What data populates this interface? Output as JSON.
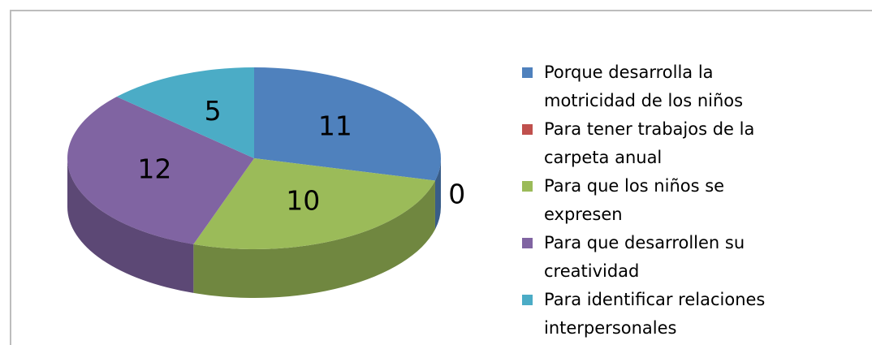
{
  "chart_data": {
    "type": "pie",
    "categories": [
      "Porque desarrolla la motricidad de los niños",
      "Para tener trabajos de la carpeta anual",
      "Para que los niños se expresen",
      "Para que desarrollen su creatividad",
      "Para identificar relaciones interpersonales"
    ],
    "values": [
      11,
      0,
      10,
      12,
      5
    ],
    "colors": [
      "#4f81bd",
      "#c0504d",
      "#9bbb59",
      "#8064a2",
      "#4bacc6"
    ],
    "legend": "right"
  }
}
